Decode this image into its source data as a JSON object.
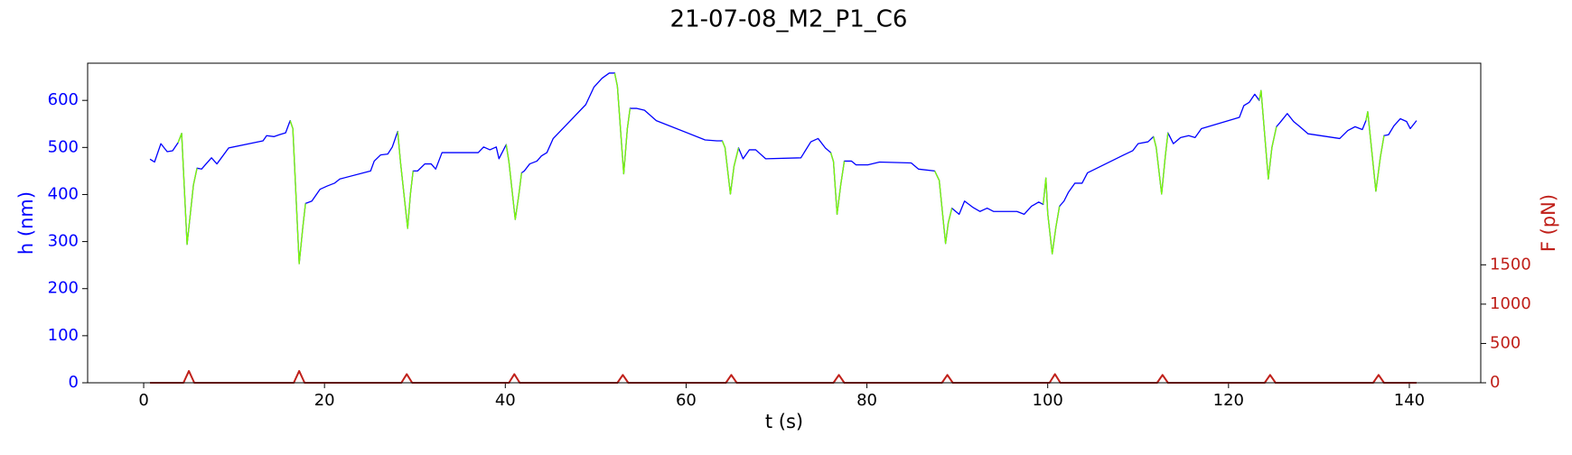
{
  "chart_data": {
    "type": "line",
    "title": "21-07-08_M2_P1_C6",
    "x_label": "t (s)",
    "y_label": "h (nm)",
    "y2_label": "F (pN)",
    "xlim": [
      -6.2,
      147.9
    ],
    "xticks": [
      0,
      20,
      40,
      60,
      80,
      100,
      120,
      140
    ],
    "ylim": [
      0,
      679
    ],
    "yticks": [
      0,
      100,
      200,
      300,
      400,
      500,
      600
    ],
    "y_color": "#0000ff",
    "y2lim": [
      0,
      4064
    ],
    "y2ticks": [
      0,
      500,
      1000,
      1500
    ],
    "y2_color": "#c0201a",
    "series": [
      {
        "color": "#0000ff",
        "axis": "y",
        "x": [
          0.7,
          1.2,
          1.9,
          2.6,
          3.2,
          3.8,
          4.2,
          4.8,
          5.5,
          5.9,
          6.4,
          6.9,
          7.5,
          8.1,
          9.4,
          13.2,
          13.6,
          14.4,
          15.0,
          15.7,
          16.2,
          16.5,
          17.2,
          17.6,
          17.9,
          18.6,
          19.5,
          20.3,
          21.1,
          21.7,
          25.1,
          25.5,
          26.2,
          27.0,
          27.5,
          28.1,
          28.4,
          29.2,
          29.5,
          29.8,
          30.3,
          31.1,
          31.8,
          32.3,
          33.0,
          37.0,
          37.6,
          38.3,
          39.0,
          39.3,
          40.1,
          40.4,
          41.1,
          41.5,
          41.8,
          42.1,
          42.7,
          43.5,
          44.0,
          44.6,
          45.3,
          48.9,
          49.8,
          50.7,
          51.5,
          52.1,
          52.4,
          53.1,
          53.5,
          53.8,
          54.5,
          55.4,
          56.7,
          62.1,
          63.4,
          64.0,
          64.3,
          64.9,
          65.3,
          65.8,
          66.3,
          67.0,
          67.7,
          68.8,
          72.7,
          73.8,
          74.6,
          75.4,
          76.0,
          76.3,
          76.7,
          77.1,
          77.5,
          78.3,
          78.8,
          80.1,
          81.4,
          84.9,
          85.7,
          87.5,
          88.0,
          88.7,
          89.0,
          89.4,
          90.2,
          90.8,
          91.7,
          92.5,
          93.3,
          94.0,
          96.6,
          97.4,
          98.2,
          99.0,
          99.5,
          99.8,
          100.0,
          100.5,
          100.9,
          101.3,
          101.8,
          102.3,
          103.0,
          103.8,
          104.4,
          108.4,
          109.4,
          110.0,
          111.1,
          111.7,
          112.0,
          112.6,
          113.0,
          113.3,
          113.9,
          114.7,
          115.6,
          116.3,
          117.0,
          120.7,
          121.2,
          121.7,
          122.3,
          122.9,
          123.4,
          123.6,
          124.4,
          124.8,
          125.3,
          125.7,
          126.5,
          127.2,
          127.9,
          128.8,
          132.3,
          133.2,
          134.0,
          134.8,
          135.2,
          135.4,
          136.3,
          136.8,
          137.2,
          137.7,
          138.3,
          139.0,
          139.7,
          140.1,
          140.8
        ],
        "values": [
          475,
          469,
          508,
          491,
          493,
          510,
          530,
          294,
          420,
          456,
          454,
          465,
          478,
          465,
          499,
          514,
          525,
          523,
          527,
          531,
          557,
          540,
          253,
          330,
          381,
          386,
          411,
          418,
          424,
          433,
          450,
          471,
          484,
          486,
          501,
          534,
          470,
          328,
          400,
          450,
          450,
          465,
          465,
          454,
          489,
          489,
          501,
          495,
          501,
          476,
          506,
          470,
          347,
          400,
          446,
          450,
          465,
          471,
          482,
          489,
          519,
          591,
          628,
          647,
          658,
          658,
          630,
          444,
          540,
          583,
          583,
          579,
          557,
          516,
          514,
          514,
          500,
          401,
          460,
          499,
          476,
          495,
          495,
          476,
          478,
          512,
          519,
          499,
          489,
          470,
          358,
          420,
          471,
          471,
          463,
          463,
          469,
          467,
          454,
          450,
          430,
          296,
          340,
          371,
          358,
          386,
          373,
          364,
          371,
          364,
          364,
          358,
          375,
          384,
          379,
          435,
          360,
          274,
          330,
          375,
          386,
          405,
          424,
          424,
          446,
          484,
          493,
          508,
          512,
          523,
          500,
          401,
          480,
          531,
          508,
          521,
          525,
          521,
          540,
          561,
          564,
          589,
          596,
          613,
          600,
          621,
          433,
          500,
          544,
          553,
          572,
          555,
          544,
          529,
          519,
          536,
          544,
          538,
          557,
          576,
          407,
          480,
          525,
          527,
          546,
          561,
          555,
          540,
          557
        ]
      },
      {
        "color": "#7cfc00",
        "axis": "y",
        "x": [
          3.8,
          4.2,
          4.8,
          5.5,
          5.9,
          null,
          16.2,
          16.5,
          17.2,
          17.6,
          17.9,
          null,
          28.1,
          28.4,
          29.2,
          29.5,
          29.8,
          null,
          40.1,
          40.4,
          41.1,
          41.5,
          41.8,
          null,
          52.1,
          52.4,
          53.1,
          53.5,
          53.8,
          null,
          64.0,
          64.3,
          64.9,
          65.3,
          65.8,
          null,
          76.0,
          76.3,
          76.7,
          77.1,
          77.5,
          null,
          87.5,
          88.0,
          88.7,
          89.0,
          89.4,
          null,
          99.5,
          99.8,
          100.0,
          100.5,
          100.9,
          101.3,
          null,
          111.7,
          112.0,
          112.6,
          113.0,
          113.3,
          null,
          123.4,
          123.6,
          124.4,
          124.8,
          125.3,
          null,
          135.2,
          135.4,
          136.3,
          136.8,
          137.2
        ],
        "values": [
          510,
          530,
          294,
          420,
          456,
          null,
          557,
          540,
          253,
          330,
          381,
          null,
          534,
          470,
          328,
          400,
          450,
          null,
          506,
          470,
          347,
          400,
          446,
          null,
          658,
          630,
          444,
          540,
          583,
          null,
          514,
          500,
          401,
          460,
          499,
          null,
          489,
          470,
          358,
          420,
          471,
          null,
          450,
          430,
          296,
          340,
          371,
          null,
          379,
          435,
          360,
          274,
          330,
          375,
          null,
          523,
          500,
          401,
          480,
          531,
          null,
          600,
          621,
          433,
          500,
          544,
          null,
          557,
          576,
          407,
          480,
          525
        ]
      },
      {
        "color": "#c0201a",
        "axis": "y2",
        "x": [
          0.7,
          4.4,
          5.0,
          5.6,
          16.6,
          17.2,
          17.8,
          28.5,
          29.1,
          29.7,
          40.4,
          41.0,
          41.6,
          52.4,
          53.0,
          53.6,
          64.4,
          65.0,
          65.6,
          76.3,
          76.9,
          77.5,
          88.3,
          88.9,
          89.5,
          100.2,
          100.8,
          101.4,
          112.1,
          112.7,
          113.3,
          124.0,
          124.6,
          125.2,
          136.0,
          136.6,
          137.2,
          140.8
        ],
        "values": [
          0,
          0,
          150,
          0,
          0,
          150,
          0,
          0,
          110,
          0,
          0,
          110,
          0,
          0,
          100,
          0,
          0,
          100,
          0,
          0,
          100,
          0,
          0,
          100,
          0,
          0,
          110,
          0,
          0,
          100,
          0,
          0,
          100,
          0,
          0,
          100,
          0,
          0
        ]
      }
    ]
  }
}
